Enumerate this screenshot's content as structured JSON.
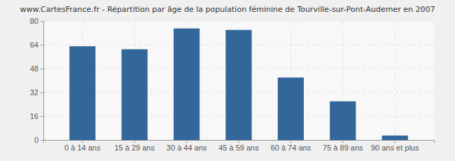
{
  "chart_data": {
    "type": "bar",
    "title": "www.CartesFrance.fr - Répartition par âge de la population féminine de Tourville-sur-Pont-Audemer en 2007",
    "categories": [
      "0 à 14 ans",
      "15 à 29 ans",
      "30 à 44 ans",
      "45 à 59 ans",
      "60 à 74 ans",
      "75 à 89 ans",
      "90 ans et plus"
    ],
    "values": [
      63,
      61,
      75,
      74,
      42,
      26,
      3
    ],
    "color": "#336699",
    "ylim": [
      0,
      80
    ],
    "yticks": [
      0,
      16,
      32,
      48,
      64,
      80
    ],
    "grid": true
  }
}
